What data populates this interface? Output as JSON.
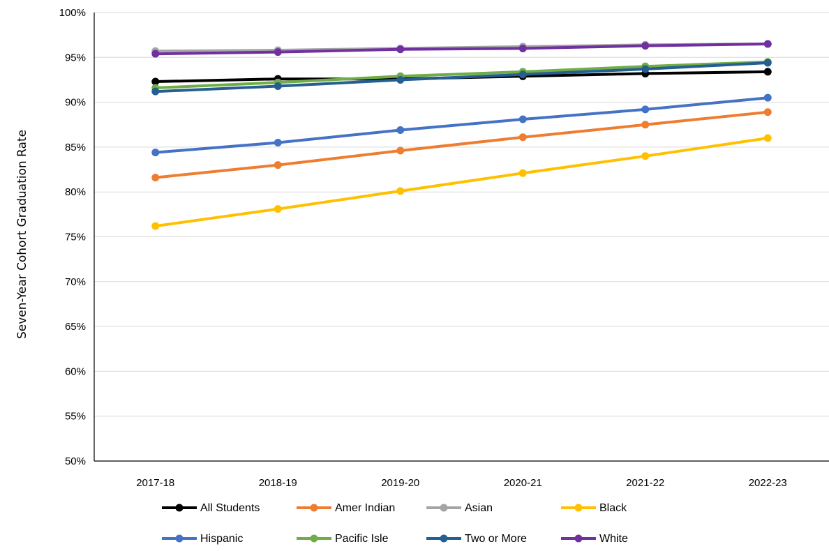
{
  "chart_data": {
    "type": "line",
    "ylabel": "Seven-Year Cohort Graduation Rate",
    "xlabel": "",
    "categories": [
      "2017-18",
      "2018-19",
      "2019-20",
      "2020-21",
      "2021-22",
      "2022-23"
    ],
    "ylim": [
      50,
      100
    ],
    "y_ticks": [
      "50%",
      "55%",
      "60%",
      "65%",
      "70%",
      "75%",
      "80%",
      "85%",
      "90%",
      "95%",
      "100%"
    ],
    "grid": true,
    "legend_position": "bottom",
    "series": [
      {
        "name": "All Students",
        "color": "#000000",
        "values": [
          92.3,
          92.6,
          92.6,
          92.9,
          93.2,
          93.4
        ]
      },
      {
        "name": "Amer Indian",
        "color": "#ED7D31",
        "values": [
          81.6,
          83.0,
          84.6,
          86.1,
          87.5,
          88.9
        ]
      },
      {
        "name": "Asian",
        "color": "#A5A5A5",
        "values": [
          95.7,
          95.8,
          96.0,
          96.2,
          96.4,
          96.5
        ]
      },
      {
        "name": "Black",
        "color": "#FFC000",
        "values": [
          76.2,
          78.1,
          80.1,
          82.1,
          84.0,
          86.0
        ]
      },
      {
        "name": "Hispanic",
        "color": "#4472C4",
        "values": [
          84.4,
          85.5,
          86.9,
          88.1,
          89.2,
          90.5
        ]
      },
      {
        "name": "Pacific Isle",
        "color": "#70AD47",
        "values": [
          91.6,
          92.2,
          92.9,
          93.4,
          94.0,
          94.5
        ]
      },
      {
        "name": "Two or More",
        "color": "#255E91",
        "values": [
          91.2,
          91.8,
          92.5,
          93.1,
          93.7,
          94.4
        ]
      },
      {
        "name": "White",
        "color": "#7030A0",
        "values": [
          95.4,
          95.6,
          95.9,
          96.0,
          96.3,
          96.5
        ]
      }
    ]
  }
}
